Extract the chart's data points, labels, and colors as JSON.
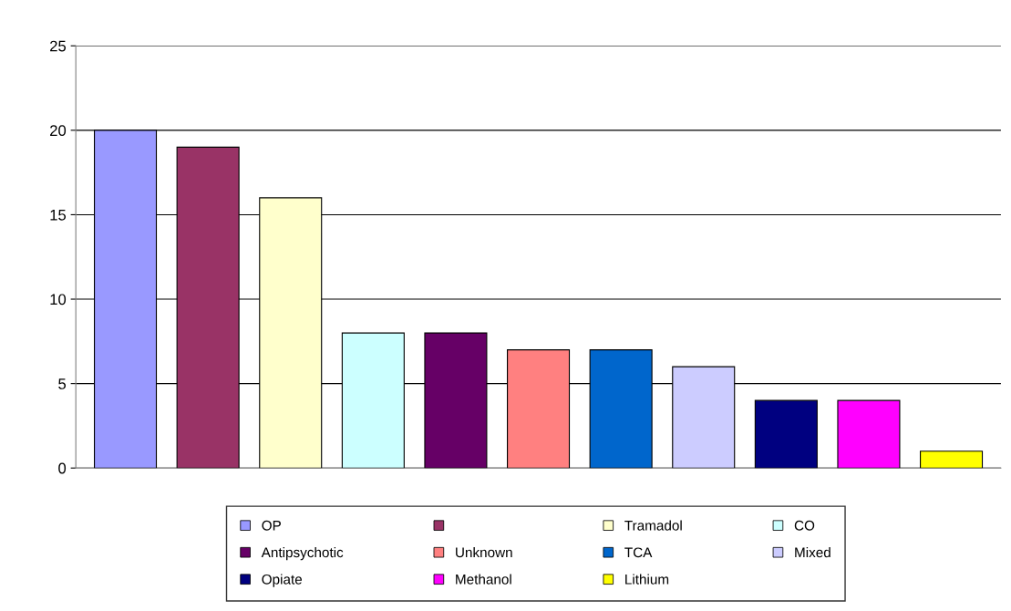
{
  "chart_data": {
    "type": "bar",
    "categories": [
      null,
      null,
      null,
      null,
      null,
      null,
      null,
      null,
      null,
      null,
      null
    ],
    "series": [
      {
        "name": "OP",
        "color": "#9999ff",
        "values": [
          20,
          null,
          null,
          null,
          null,
          null,
          null,
          null,
          null,
          null,
          null
        ]
      },
      {
        "color": "#993366",
        "values": [
          null,
          19,
          null,
          null,
          null,
          null,
          null,
          null,
          null,
          null,
          null
        ]
      },
      {
        "name": "Tramadol",
        "color": "#ffffcc",
        "values": [
          null,
          null,
          16,
          null,
          null,
          null,
          null,
          null,
          null,
          null,
          null
        ]
      },
      {
        "name": "CO",
        "color": "#ccffff",
        "values": [
          null,
          null,
          null,
          8,
          null,
          null,
          null,
          null,
          null,
          null,
          null
        ]
      },
      {
        "name": "Antipsychotic",
        "color": "#660066",
        "values": [
          null,
          null,
          null,
          null,
          8,
          null,
          null,
          null,
          null,
          null,
          null
        ]
      },
      {
        "name": "Unknown",
        "color": "#ff8080",
        "values": [
          null,
          null,
          null,
          null,
          null,
          7,
          null,
          null,
          null,
          null,
          null
        ]
      },
      {
        "name": "TCA",
        "color": "#0066cc",
        "values": [
          null,
          null,
          null,
          null,
          null,
          null,
          7,
          null,
          null,
          null,
          null
        ]
      },
      {
        "name": "Mixed",
        "color": "#ccccff",
        "values": [
          null,
          null,
          null,
          null,
          null,
          null,
          null,
          6,
          null,
          null,
          null
        ]
      },
      {
        "name": "Opiate",
        "color": "#000080",
        "values": [
          null,
          null,
          null,
          null,
          null,
          null,
          null,
          null,
          4,
          null,
          null
        ]
      },
      {
        "name": "Methanol",
        "color": "#ff00ff",
        "values": [
          null,
          null,
          null,
          null,
          null,
          null,
          null,
          null,
          null,
          4,
          null
        ]
      },
      {
        "name": "Lithium",
        "color": "#ffff00",
        "values": [
          null,
          null,
          null,
          null,
          null,
          null,
          null,
          null,
          null,
          null,
          1
        ]
      }
    ],
    "ylim": [
      0,
      25
    ],
    "yticks": [
      0,
      5,
      10,
      15,
      20,
      25
    ],
    "grid": "y",
    "legend": "bottom",
    "tick_labels": "y"
  }
}
